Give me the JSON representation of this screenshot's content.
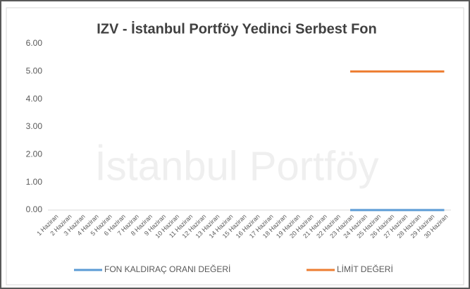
{
  "chart_data": {
    "type": "line",
    "title": "IZV - İstanbul Portföy Yedinci Serbest Fon",
    "watermark": "İstanbul Portföy",
    "categories": [
      "1 Haziran",
      "2 Haziran",
      "3 Haziran",
      "4 Haziran",
      "5 Haziran",
      "6 Haziran",
      "7 Haziran",
      "8 Haziran",
      "9 Haziran",
      "10 Haziran",
      "11 Haziran",
      "12 Haziran",
      "13 Haziran",
      "14 Haziran",
      "15 Haziran",
      "16 Haziran",
      "17 Haziran",
      "18 Haziran",
      "19 Haziran",
      "20 Haziran",
      "21 Haziran",
      "22 Haziran",
      "23 Haziran",
      "24 Haziran",
      "25 Haziran",
      "26 Haziran",
      "27 Haziran",
      "28 Haziran",
      "29 Haziran",
      "30 Haziran"
    ],
    "series": [
      {
        "name": "FON KALDIRAÇ ORANI DEĞERİ",
        "color": "#5b9bd5",
        "values": [
          null,
          null,
          null,
          null,
          null,
          null,
          null,
          null,
          null,
          null,
          null,
          null,
          null,
          null,
          null,
          null,
          null,
          null,
          null,
          null,
          null,
          null,
          0,
          0,
          0,
          0,
          0,
          0,
          0,
          0
        ]
      },
      {
        "name": "LİMİT DEĞERİ",
        "color": "#ed7d31",
        "values": [
          null,
          null,
          null,
          null,
          null,
          null,
          null,
          null,
          null,
          null,
          null,
          null,
          null,
          null,
          null,
          null,
          null,
          null,
          null,
          null,
          null,
          null,
          5,
          5,
          5,
          5,
          5,
          5,
          5,
          5
        ]
      }
    ],
    "ylim": [
      0,
      6
    ],
    "yticks": [
      {
        "value": 0,
        "label": "0.00"
      },
      {
        "value": 1,
        "label": "1.00"
      },
      {
        "value": 2,
        "label": "2.00"
      },
      {
        "value": 3,
        "label": "3.00"
      },
      {
        "value": 4,
        "label": "4.00"
      },
      {
        "value": 5,
        "label": "5.00"
      },
      {
        "value": 6,
        "label": "6.00"
      }
    ],
    "grid": false,
    "legend": "bottom"
  }
}
